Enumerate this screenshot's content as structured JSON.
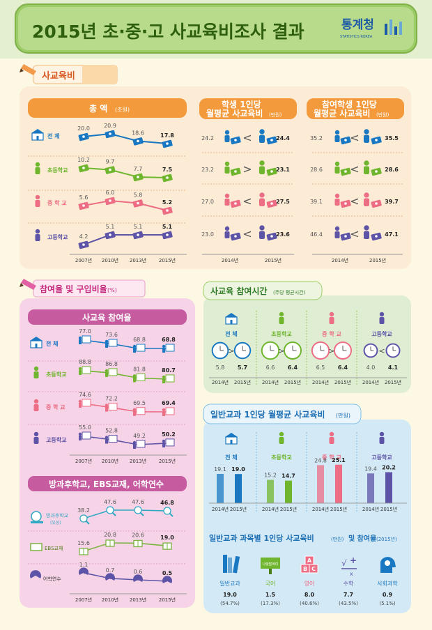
{
  "header": {
    "title": "2015년 초·중·고 사교육비조사 결과",
    "logo_text": "통계청",
    "logo_sub": "STATISTICS KOREA"
  },
  "colors": {
    "orange_panel": "#fcecd6",
    "orange_bar": "#f29a3c",
    "pink_panel": "#f6d3e6",
    "pink_bar": "#c75ba0",
    "green_panel": "#dfeed3",
    "blue_panel": "#d3eaf6",
    "total": "#1a78c2",
    "elementary": "#6fb52e",
    "middle": "#ec6d84",
    "high": "#5d53a7"
  },
  "icons": {
    "school": "school-building-icon",
    "elementary": "running-child-icon",
    "middle": "girl-student-icon",
    "high": "boy-student-icon",
    "money": "money-stack-icon",
    "clock": "alarm-clock-icon"
  },
  "groups": [
    "전 체",
    "초등학교",
    "중 학 교",
    "고등학교"
  ],
  "years": [
    "2007년",
    "2010년",
    "2013년",
    "2015년"
  ],
  "sections": {
    "private_spending": {
      "title": "사교육비",
      "total_header": "총 액",
      "total_unit": "(조원)",
      "per_student_header": "학생 1인당",
      "per_student_header2": "월평균 사교육비",
      "per_student_unit": "(만원)",
      "per_participant_header": "참여학생 1인당",
      "per_participant_header2": "월평균 사교육비",
      "per_participant_unit": "(만원)",
      "year_a": "2014년",
      "year_b": "2015년"
    },
    "participation": {
      "title": "참여율 및 구입비율",
      "title_unit": "(%)",
      "sub1": "사교육 참여율",
      "sub2": "방과후학교, EBS교재, 어학연수",
      "after_school_label": "방과후학교",
      "after_school_note": "(유상)",
      "ebs_label": "EBS교재",
      "lang_label": "어학연수"
    },
    "time": {
      "title": "사교육 참여시간",
      "title_unit": "(주당 평균시간)",
      "year_a": "2014년",
      "year_b": "2015년"
    },
    "general": {
      "title": "일반교과 1인당 월평균 사교육비",
      "title_unit": "(만원)",
      "year_a": "2014년",
      "year_b": "2015년"
    },
    "subjects": {
      "title": "일반교과 과목별 1인당 사교육비",
      "title_mid": "(만원)",
      "title_tail": " 및 참여율",
      "title_year": "(2015년)",
      "items": [
        {
          "name": "일반교과",
          "value": "19.0",
          "rate": "(54.7%)",
          "icon": "books-icon"
        },
        {
          "name": "국어",
          "value": "1.5",
          "rate": "(17.3%)",
          "icon": "korean-sign-icon",
          "sign": "나랏말싸미"
        },
        {
          "name": "영어",
          "value": "8.0",
          "rate": "(40.6%)",
          "icon": "abc-blocks-icon"
        },
        {
          "name": "수학",
          "value": "7.7",
          "rate": "(43.5%)",
          "icon": "math-symbols-icon"
        },
        {
          "name": "사회과학",
          "value": "0.9",
          "rate": "(5.1%)",
          "icon": "head-gear-icon"
        }
      ]
    }
  },
  "chart_data": [
    {
      "type": "line",
      "title": "총 액(조원)",
      "categories": [
        "2007년",
        "2010년",
        "2013년",
        "2015년"
      ],
      "series": [
        {
          "name": "전 체",
          "values": [
            20.0,
            20.9,
            18.6,
            17.8
          ]
        },
        {
          "name": "초등학교",
          "values": [
            10.2,
            9.7,
            7.7,
            7.5
          ]
        },
        {
          "name": "중 학 교",
          "values": [
            5.6,
            6.0,
            5.8,
            5.2
          ]
        },
        {
          "name": "고등학교",
          "values": [
            4.2,
            5.1,
            5.1,
            5.1
          ]
        }
      ]
    },
    {
      "type": "table",
      "title": "학생 1인당 월평균 사교육비(만원)",
      "categories": [
        "2014년",
        "2015년"
      ],
      "series": [
        {
          "name": "전 체",
          "values": [
            24.2,
            24.4
          ],
          "sign": "<"
        },
        {
          "name": "초등학교",
          "values": [
            23.2,
            23.1
          ],
          "sign": ">"
        },
        {
          "name": "중 학 교",
          "values": [
            27.0,
            27.5
          ],
          "sign": "<"
        },
        {
          "name": "고등학교",
          "values": [
            23.0,
            23.6
          ],
          "sign": "<"
        }
      ]
    },
    {
      "type": "table",
      "title": "참여학생 1인당 월평균 사교육비(만원)",
      "categories": [
        "2014년",
        "2015년"
      ],
      "series": [
        {
          "name": "전 체",
          "values": [
            35.2,
            35.5
          ],
          "sign": "<"
        },
        {
          "name": "초등학교",
          "values": [
            28.6,
            28.6
          ],
          "sign": "<"
        },
        {
          "name": "중 학 교",
          "values": [
            39.1,
            39.7
          ],
          "sign": "<"
        },
        {
          "name": "고등학교",
          "values": [
            46.4,
            47.1
          ],
          "sign": "<"
        }
      ]
    },
    {
      "type": "line",
      "title": "사교육 참여율",
      "categories": [
        "2007년",
        "2010년",
        "2013년",
        "2015년"
      ],
      "series": [
        {
          "name": "전 체",
          "values": [
            77.0,
            73.6,
            68.8,
            68.8
          ]
        },
        {
          "name": "초등학교",
          "values": [
            88.8,
            86.8,
            81.8,
            80.7
          ]
        },
        {
          "name": "중 학 교",
          "values": [
            74.6,
            72.2,
            69.5,
            69.4
          ]
        },
        {
          "name": "고등학교",
          "values": [
            55.0,
            52.8,
            49.2,
            50.2
          ]
        }
      ]
    },
    {
      "type": "line",
      "title": "방과후학교, EBS교재, 어학연수",
      "categories": [
        "2007년",
        "2010년",
        "2013년",
        "2015년"
      ],
      "series": [
        {
          "name": "방과후학교(유상)",
          "values": [
            38.2,
            47.6,
            47.6,
            46.8
          ]
        },
        {
          "name": "EBS교재",
          "values": [
            15.6,
            20.8,
            20.6,
            19.0
          ]
        },
        {
          "name": "어학연수",
          "values": [
            1.1,
            0.7,
            0.6,
            0.5
          ]
        }
      ]
    },
    {
      "type": "table",
      "title": "사교육 참여시간(주당 평균시간)",
      "categories": [
        "2014년",
        "2015년"
      ],
      "series": [
        {
          "name": "전 체",
          "values": [
            5.8,
            5.7
          ],
          "sign": ">"
        },
        {
          "name": "초등학교",
          "values": [
            6.6,
            6.4
          ],
          "sign": ">"
        },
        {
          "name": "중 학 교",
          "values": [
            6.5,
            6.4
          ],
          "sign": ">"
        },
        {
          "name": "고등학교",
          "values": [
            4.0,
            4.1
          ],
          "sign": "<"
        }
      ]
    },
    {
      "type": "bar",
      "title": "일반교과 1인당 월평균 사교육비(만원)",
      "categories": [
        "2014년",
        "2015년"
      ],
      "series": [
        {
          "name": "전 체",
          "values": [
            19.1,
            19.0
          ]
        },
        {
          "name": "초등학교",
          "values": [
            15.2,
            14.7
          ]
        },
        {
          "name": "중 학 교",
          "values": [
            24.8,
            25.1
          ]
        },
        {
          "name": "고등학교",
          "values": [
            19.4,
            20.2
          ]
        }
      ]
    }
  ]
}
